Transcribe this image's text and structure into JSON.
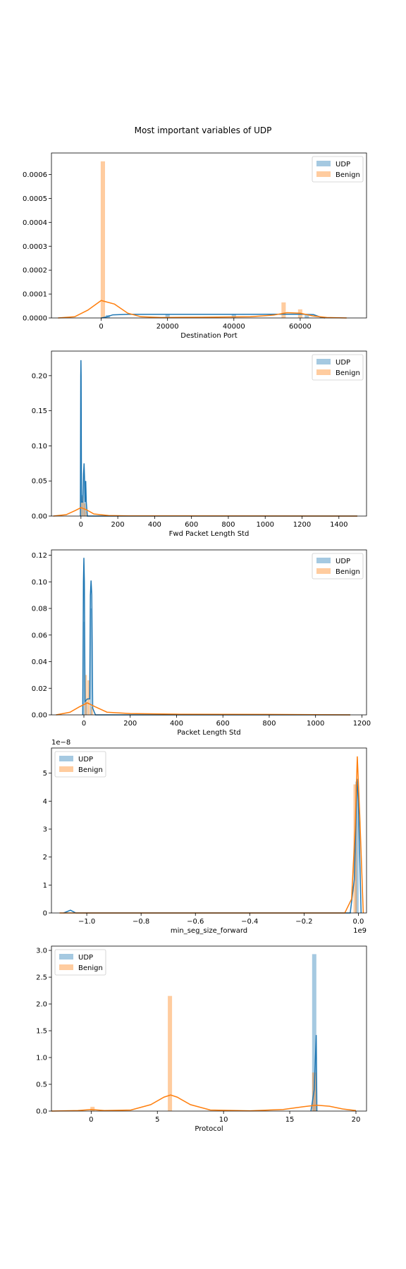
{
  "figure": {
    "title": "Most important variables of UDP"
  },
  "colors": {
    "udp": "#1f77b4",
    "benign": "#ff7f0e",
    "udp_hist": "#1f77b4",
    "benign_hist": "#ff7f0e"
  },
  "chart_data": [
    {
      "type": "histogram+kde",
      "xlabel": "Destination Port",
      "ylabel": "",
      "xlim": [
        -15000,
        80000
      ],
      "ylim": [
        0,
        0.00069
      ],
      "x_ticks": [
        0,
        20000,
        40000,
        60000
      ],
      "x_tick_labels": [
        "0",
        "20000",
        "40000",
        "60000"
      ],
      "y_ticks": [
        0,
        0.0001,
        0.0002,
        0.0003,
        0.0004,
        0.0005,
        0.0006
      ],
      "y_tick_labels": [
        "0.0000",
        "0.0001",
        "0.0002",
        "0.0003",
        "0.0004",
        "0.0005",
        "0.0006"
      ],
      "legend": "top-right",
      "series": [
        {
          "name": "UDP",
          "bars": [
            [
              2000,
              1.2e-05
            ],
            [
              20000,
              1.4e-05
            ],
            [
              40000,
              1.4e-05
            ],
            [
              62000,
              1.4e-05
            ]
          ],
          "bar_width": 1300,
          "kde": [
            [
              0,
              0
            ],
            [
              1500,
              4e-06
            ],
            [
              3500,
              1.3e-05
            ],
            [
              8000,
              1.5e-05
            ],
            [
              20000,
              1.5e-05
            ],
            [
              40000,
              1.5e-05
            ],
            [
              60000,
              1.6e-05
            ],
            [
              64000,
              1.4e-05
            ],
            [
              66000,
              4e-06
            ],
            [
              67500,
              0
            ]
          ]
        },
        {
          "name": "Benign",
          "bars": [
            [
              500,
              0.000655
            ],
            [
              55000,
              6.5e-05
            ],
            [
              60000,
              3.6e-05
            ]
          ],
          "bar_width": 1300,
          "kde": [
            [
              -13000,
              0
            ],
            [
              -8000,
              5e-06
            ],
            [
              -4000,
              3.3e-05
            ],
            [
              0,
              7.3e-05
            ],
            [
              4000,
              5.8e-05
            ],
            [
              8000,
              2e-05
            ],
            [
              12000,
              5e-06
            ],
            [
              18000,
              2e-06
            ],
            [
              30000,
              3e-06
            ],
            [
              45000,
              5e-06
            ],
            [
              52000,
              1.2e-05
            ],
            [
              56000,
              2.2e-05
            ],
            [
              60000,
              2e-05
            ],
            [
              64000,
              8e-06
            ],
            [
              68000,
              2e-06
            ],
            [
              74000,
              0
            ]
          ]
        }
      ]
    },
    {
      "type": "histogram+kde",
      "xlabel": "Fwd Packet Length Std",
      "ylabel": "",
      "xlim": [
        -160,
        1550
      ],
      "ylim": [
        0,
        0.235
      ],
      "x_ticks": [
        0,
        200,
        400,
        600,
        800,
        1000,
        1200,
        1400
      ],
      "x_tick_labels": [
        "0",
        "200",
        "400",
        "600",
        "800",
        "1000",
        "1200",
        "1400"
      ],
      "y_ticks": [
        0,
        0.05,
        0.1,
        0.15,
        0.2
      ],
      "y_tick_labels": [
        "0.00",
        "0.05",
        "0.10",
        "0.15",
        "0.20"
      ],
      "legend": "top-right",
      "series": [
        {
          "name": "UDP",
          "bars": [
            [
              0,
              0.05
            ],
            [
              8,
              0.03
            ],
            [
              16,
              0.058
            ],
            [
              24,
              0.045
            ]
          ],
          "bar_width": 6,
          "kde": [
            [
              -3,
              0
            ],
            [
              -1,
              0.2
            ],
            [
              0,
              0.222
            ],
            [
              1,
              0.2
            ],
            [
              3,
              0.02
            ],
            [
              10,
              0.02
            ],
            [
              14,
              0.06
            ],
            [
              17,
              0.075
            ],
            [
              20,
              0.05
            ],
            [
              23,
              0.02
            ],
            [
              26,
              0.05
            ],
            [
              29,
              0.02
            ],
            [
              35,
              0
            ],
            [
              1500,
              0
            ]
          ]
        },
        {
          "name": "Benign",
          "bars": [
            [
              0,
              0.02
            ],
            [
              10,
              0.028
            ],
            [
              20,
              0.018
            ],
            [
              30,
              0.006
            ]
          ],
          "bar_width": 8,
          "kde": [
            [
              -150,
              0
            ],
            [
              -80,
              0.002
            ],
            [
              -30,
              0.008
            ],
            [
              0,
              0.012
            ],
            [
              30,
              0.009
            ],
            [
              70,
              0.003
            ],
            [
              150,
              0.0008
            ],
            [
              260,
              0.0003
            ],
            [
              1500,
              0
            ]
          ]
        }
      ]
    },
    {
      "type": "histogram+kde",
      "xlabel": "Packet Length Std",
      "ylabel": "",
      "xlim": [
        -140,
        1220
      ],
      "ylim": [
        0,
        0.124
      ],
      "x_ticks": [
        0,
        200,
        400,
        600,
        800,
        1000,
        1200
      ],
      "x_tick_labels": [
        "0",
        "200",
        "400",
        "600",
        "800",
        "1000",
        "1200"
      ],
      "y_ticks": [
        0,
        0.02,
        0.04,
        0.06,
        0.08,
        0.1,
        0.12
      ],
      "y_tick_labels": [
        "0.00",
        "0.02",
        "0.04",
        "0.06",
        "0.08",
        "0.10",
        "0.12"
      ],
      "legend": "top-right",
      "series": [
        {
          "name": "UDP",
          "bars": [
            [
              0,
              0.07
            ],
            [
              10,
              0.01
            ],
            [
              30,
              0.08
            ]
          ],
          "bar_width": 8,
          "kde": [
            [
              -5,
              0
            ],
            [
              -2,
              0.1
            ],
            [
              0,
              0.118
            ],
            [
              2,
              0.1
            ],
            [
              5,
              0.01
            ],
            [
              15,
              0.012
            ],
            [
              25,
              0.012
            ],
            [
              28,
              0.09
            ],
            [
              31,
              0.101
            ],
            [
              34,
              0.09
            ],
            [
              38,
              0.005
            ],
            [
              50,
              0
            ],
            [
              1150,
              0
            ]
          ]
        },
        {
          "name": "Benign",
          "bars": [
            [
              8,
              0.03
            ],
            [
              20,
              0.026
            ],
            [
              35,
              0.006
            ]
          ],
          "bar_width": 10,
          "kde": [
            [
              -120,
              0
            ],
            [
              -60,
              0.002
            ],
            [
              -20,
              0.006
            ],
            [
              15,
              0.009
            ],
            [
              50,
              0.006
            ],
            [
              100,
              0.002
            ],
            [
              200,
              0.001
            ],
            [
              400,
              0.0005
            ],
            [
              800,
              0.0003
            ],
            [
              1150,
              0
            ]
          ]
        }
      ]
    },
    {
      "type": "histogram+kde",
      "xlabel": "min_seg_size_forward",
      "ylabel": "",
      "offset_label": "1e−8",
      "x_offset_label": "1e9",
      "xlim": [
        -1.13,
        0.03
      ],
      "ylim": [
        0,
        5.9
      ],
      "x_ticks": [
        -1.0,
        -0.8,
        -0.6,
        -0.4,
        -0.2,
        0.0
      ],
      "x_tick_labels": [
        "−1.0",
        "−0.8",
        "−0.6",
        "−0.4",
        "−0.2",
        "0.0"
      ],
      "y_ticks": [
        0,
        1,
        2,
        3,
        4,
        5
      ],
      "y_tick_labels": [
        "0",
        "1",
        "2",
        "3",
        "4",
        "5"
      ],
      "legend": "top-left",
      "series": [
        {
          "name": "UDP",
          "bars": [
            [
              -0.005,
              4.7
            ]
          ],
          "bar_width": 0.012,
          "kde": [
            [
              -1.085,
              0
            ],
            [
              -1.06,
              0.1
            ],
            [
              -1.04,
              0
            ],
            [
              -0.03,
              0
            ],
            [
              -0.015,
              1.2
            ],
            [
              -0.005,
              4.8
            ],
            [
              0,
              4.0
            ],
            [
              0.01,
              0
            ]
          ]
        },
        {
          "name": "Benign",
          "bars": [
            [
              -0.012,
              4.6
            ]
          ],
          "bar_width": 0.012,
          "kde": [
            [
              -1.1,
              0
            ],
            [
              -0.05,
              0
            ],
            [
              -0.025,
              0.5
            ],
            [
              -0.012,
              3.0
            ],
            [
              -0.004,
              5.6
            ],
            [
              0.005,
              3.5
            ],
            [
              0.018,
              0
            ]
          ]
        }
      ]
    },
    {
      "type": "histogram+kde",
      "xlabel": "Protocol",
      "ylabel": "",
      "xlim": [
        -3.0,
        20.8
      ],
      "ylim": [
        0,
        3.08
      ],
      "x_ticks": [
        0,
        5,
        10,
        15,
        20
      ],
      "x_tick_labels": [
        "0",
        "5",
        "10",
        "15",
        "20"
      ],
      "y_ticks": [
        0,
        0.5,
        1.0,
        1.5,
        2.0,
        2.5,
        3.0
      ],
      "y_tick_labels": [
        "0.0",
        "0.5",
        "1.0",
        "1.5",
        "2.0",
        "2.5",
        "3.0"
      ],
      "legend": "top-left",
      "series": [
        {
          "name": "UDP",
          "bars": [
            [
              16.85,
              2.93
            ]
          ],
          "bar_width": 0.32,
          "kde": [
            [
              16.6,
              0
            ],
            [
              16.85,
              0.4
            ],
            [
              17.0,
              1.42
            ],
            [
              17.05,
              0
            ]
          ]
        },
        {
          "name": "Benign",
          "bars": [
            [
              0.1,
              0.08
            ],
            [
              5.95,
              2.15
            ],
            [
              16.85,
              0.72
            ]
          ],
          "bar_width": 0.32,
          "kde": [
            [
              -3,
              0
            ],
            [
              -1,
              0.01
            ],
            [
              0,
              0.03
            ],
            [
              1,
              0.01
            ],
            [
              3,
              0.02
            ],
            [
              4.5,
              0.12
            ],
            [
              5.5,
              0.26
            ],
            [
              6,
              0.3
            ],
            [
              6.5,
              0.26
            ],
            [
              7.5,
              0.12
            ],
            [
              9,
              0.02
            ],
            [
              12,
              0.005
            ],
            [
              14.5,
              0.03
            ],
            [
              16,
              0.08
            ],
            [
              17,
              0.11
            ],
            [
              18,
              0.09
            ],
            [
              19,
              0.04
            ],
            [
              20,
              0.01
            ]
          ]
        }
      ]
    }
  ]
}
